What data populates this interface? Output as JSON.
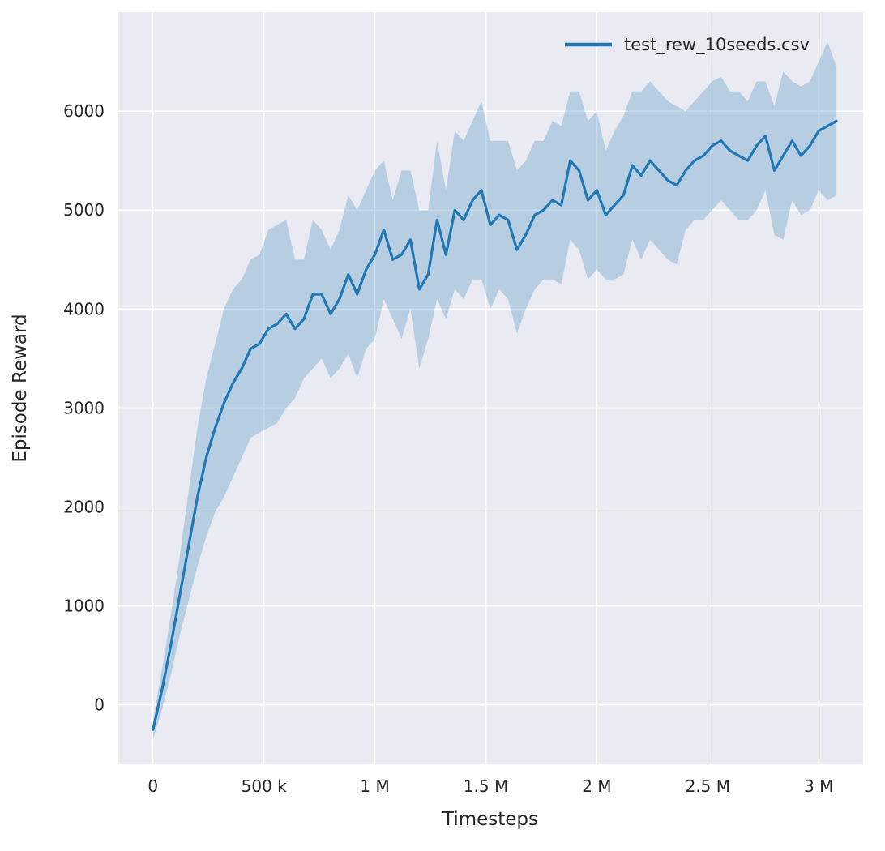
{
  "colors": {
    "axes_background": "#eaeaf2",
    "grid": "#ffffff",
    "line": "#1f77b4",
    "text": "#262626",
    "figure_background": "#ffffff"
  },
  "legend": {
    "entries": [
      {
        "label": "test_rew_10seeds.csv",
        "color": "#1f77b4"
      }
    ],
    "position": "upper right",
    "frame": false
  },
  "chart_data": {
    "type": "line",
    "title": "",
    "xlabel": "Timesteps",
    "ylabel": "Episode Reward",
    "grid": true,
    "legend_position": "upper right",
    "xlim": [
      -160000,
      3200000
    ],
    "ylim": [
      -600,
      7000
    ],
    "x_ticks": {
      "values": [
        0,
        500000,
        1000000,
        1500000,
        2000000,
        2500000,
        3000000
      ],
      "labels": [
        "0",
        "500 k",
        "1 M",
        "1.5 M",
        "2 M",
        "2.5 M",
        "3 M"
      ]
    },
    "y_ticks": {
      "values": [
        0,
        1000,
        2000,
        3000,
        4000,
        5000,
        6000
      ],
      "labels": [
        "0",
        "1000",
        "2000",
        "3000",
        "4000",
        "5000",
        "6000"
      ]
    },
    "series": [
      {
        "name": "test_rew_10seeds.csv",
        "color": "#1f77b4",
        "band_opacity": 0.25,
        "x": [
          0,
          40000,
          80000,
          120000,
          160000,
          200000,
          240000,
          280000,
          320000,
          360000,
          400000,
          440000,
          480000,
          520000,
          560000,
          600000,
          640000,
          680000,
          720000,
          760000,
          800000,
          840000,
          880000,
          920000,
          960000,
          1000000,
          1040000,
          1080000,
          1120000,
          1160000,
          1200000,
          1240000,
          1280000,
          1320000,
          1360000,
          1400000,
          1440000,
          1480000,
          1520000,
          1560000,
          1600000,
          1640000,
          1680000,
          1720000,
          1760000,
          1800000,
          1840000,
          1880000,
          1920000,
          1960000,
          2000000,
          2040000,
          2080000,
          2120000,
          2160000,
          2200000,
          2240000,
          2280000,
          2320000,
          2360000,
          2400000,
          2440000,
          2480000,
          2520000,
          2560000,
          2600000,
          2640000,
          2680000,
          2720000,
          2760000,
          2800000,
          2840000,
          2880000,
          2920000,
          2960000,
          3000000,
          3040000,
          3080000
        ],
        "mean": [
          -250,
          150,
          600,
          1100,
          1600,
          2100,
          2500,
          2800,
          3050,
          3250,
          3400,
          3600,
          3650,
          3800,
          3850,
          3950,
          3800,
          3900,
          4150,
          4150,
          3950,
          4100,
          4350,
          4150,
          4400,
          4550,
          4800,
          4500,
          4550,
          4700,
          4200,
          4350,
          4900,
          4550,
          5000,
          4900,
          5100,
          5200,
          4850,
          4950,
          4900,
          4600,
          4750,
          4950,
          5000,
          5100,
          5050,
          5500,
          5400,
          5100,
          5200,
          4950,
          5050,
          5150,
          5450,
          5350,
          5500,
          5400,
          5300,
          5250,
          5400,
          5500,
          5550,
          5650,
          5700,
          5600,
          5550,
          5500,
          5650,
          5750,
          5400,
          5550,
          5700,
          5550,
          5650,
          5800,
          5850,
          5900
        ],
        "band_lower": [
          -350,
          -50,
          300,
          700,
          1050,
          1400,
          1700,
          1950,
          2100,
          2300,
          2500,
          2700,
          2750,
          2800,
          2850,
          3000,
          3100,
          3300,
          3400,
          3500,
          3300,
          3400,
          3550,
          3300,
          3600,
          3700,
          4100,
          3900,
          3700,
          4000,
          3400,
          3700,
          4100,
          3900,
          4200,
          4100,
          4300,
          4300,
          4000,
          4200,
          4100,
          3750,
          4000,
          4200,
          4300,
          4300,
          4250,
          4700,
          4600,
          4300,
          4400,
          4300,
          4300,
          4350,
          4700,
          4500,
          4700,
          4600,
          4500,
          4450,
          4800,
          4900,
          4900,
          5000,
          5100,
          5000,
          4900,
          4900,
          5000,
          5200,
          4750,
          4700,
          5100,
          4950,
          5000,
          5200,
          5100,
          5150
        ],
        "band_upper": [
          -150,
          350,
          900,
          1500,
          2150,
          2800,
          3300,
          3650,
          4000,
          4200,
          4300,
          4500,
          4550,
          4800,
          4850,
          4900,
          4500,
          4500,
          4900,
          4800,
          4600,
          4800,
          5150,
          5000,
          5200,
          5400,
          5500,
          5100,
          5400,
          5400,
          5000,
          5000,
          5700,
          5200,
          5800,
          5700,
          5900,
          6100,
          5700,
          5700,
          5700,
          5400,
          5500,
          5700,
          5700,
          5900,
          5850,
          6200,
          6200,
          5900,
          6000,
          5600,
          5800,
          5950,
          6200,
          6200,
          6300,
          6200,
          6100,
          6050,
          6000,
          6100,
          6200,
          6300,
          6350,
          6200,
          6200,
          6100,
          6300,
          6300,
          6050,
          6400,
          6300,
          6250,
          6300,
          6500,
          6700,
          6450
        ]
      }
    ]
  }
}
